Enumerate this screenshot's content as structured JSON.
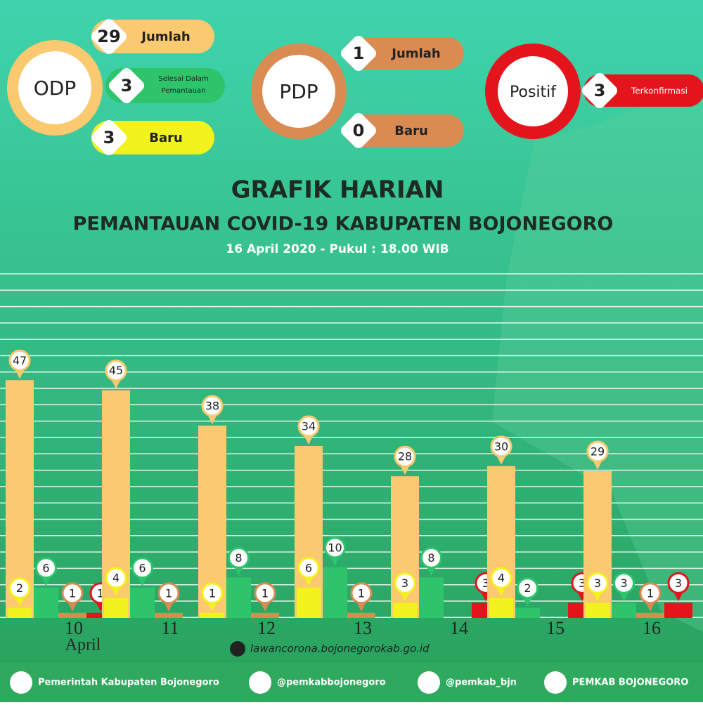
{
  "stats": {
    "odp": {
      "label": "ODP",
      "total": 29,
      "total_label": "Jumlah",
      "done": 3,
      "done_label": "Selesai Dalam Pemantauan",
      "new": 3,
      "new_label": "Baru"
    },
    "pdp": {
      "label": "PDP",
      "total": 1,
      "total_label": "Jumlah",
      "new": 0,
      "new_label": "Baru"
    },
    "positive": {
      "label": "Positif",
      "value": 3,
      "value_label": "Terkonfirmasi"
    }
  },
  "chart_data": {
    "type": "bar",
    "title": "GRAFIK HARIAN",
    "subtitle": "PEMANTAUAN COVID-19 KABUPATEN BOJONEGORO",
    "date": "16 April 2020 - Pukul : 18.00 WIB",
    "categories": [
      "10",
      "11",
      "12",
      "13",
      "14",
      "15",
      "16"
    ],
    "annotations": [
      "April"
    ],
    "ylim": [
      0,
      68
    ],
    "series": [
      {
        "color": "#fbc96f",
        "values": [
          47,
          45,
          38,
          34,
          28,
          30,
          29
        ]
      },
      {
        "color": "#f2f21e",
        "values": [
          2,
          4,
          1,
          6,
          3,
          4,
          3
        ]
      },
      {
        "color": "#2ec46c",
        "values": [
          6,
          6,
          8,
          10,
          8,
          2,
          3
        ]
      },
      {
        "color": "#d98b52",
        "values": [
          1,
          1,
          1,
          1,
          null,
          null,
          1
        ]
      },
      {
        "color": "#e3141b",
        "values": [
          1,
          null,
          null,
          null,
          3,
          3,
          3
        ]
      }
    ]
  },
  "website": "lawancorona.bojonegorokab.go.id",
  "footer": [
    "Pemerintah Kabupaten Bojonegoro",
    "@pemkabbojonegoro",
    "@pemkab_bjn",
    "PEMKAB BOJONEGORO"
  ]
}
